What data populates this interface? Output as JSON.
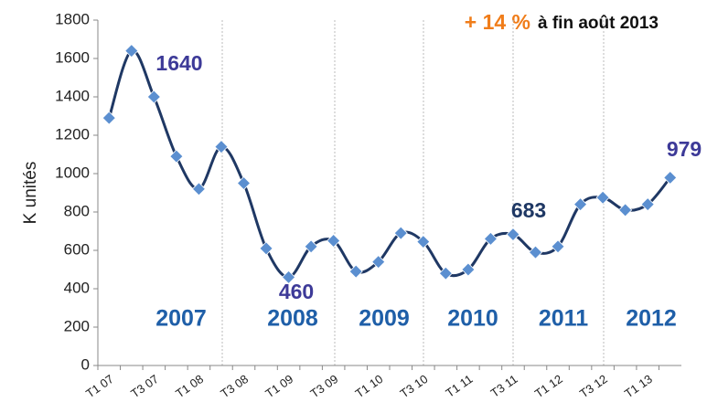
{
  "chart_data": {
    "type": "line",
    "title_highlight": "+ 14 %",
    "title": "à fin août 2013",
    "y_label": "K unités",
    "categories": [
      "T1 07",
      null,
      "T3 07",
      null,
      "T1 08",
      null,
      "T3 08",
      null,
      "T1 09",
      null,
      "T3 09",
      null,
      "T1 10",
      null,
      "T3 10",
      null,
      "T1 11",
      null,
      "T3 11",
      null,
      "T1 12",
      null,
      "T3 12",
      null,
      "T1 13",
      null
    ],
    "series": [
      {
        "name": "K unités",
        "color": "#1f3864",
        "marker_color": "#5b8fd0",
        "values": [
          1290,
          1640,
          1400,
          1090,
          920,
          1140,
          950,
          610,
          460,
          620,
          650,
          490,
          540,
          690,
          645,
          480,
          500,
          660,
          683,
          590,
          620,
          840,
          875,
          810,
          840,
          979
        ]
      }
    ],
    "annotations": [
      "1640",
      "460",
      "683",
      "979"
    ],
    "year_labels": [
      "2007",
      "2008",
      "2009",
      "2010",
      "2011",
      "2012"
    ],
    "ylim": [
      0,
      1800
    ],
    "yticks": [
      0,
      200,
      400,
      600,
      800,
      1000,
      1200,
      1400,
      1600,
      1800
    ]
  }
}
